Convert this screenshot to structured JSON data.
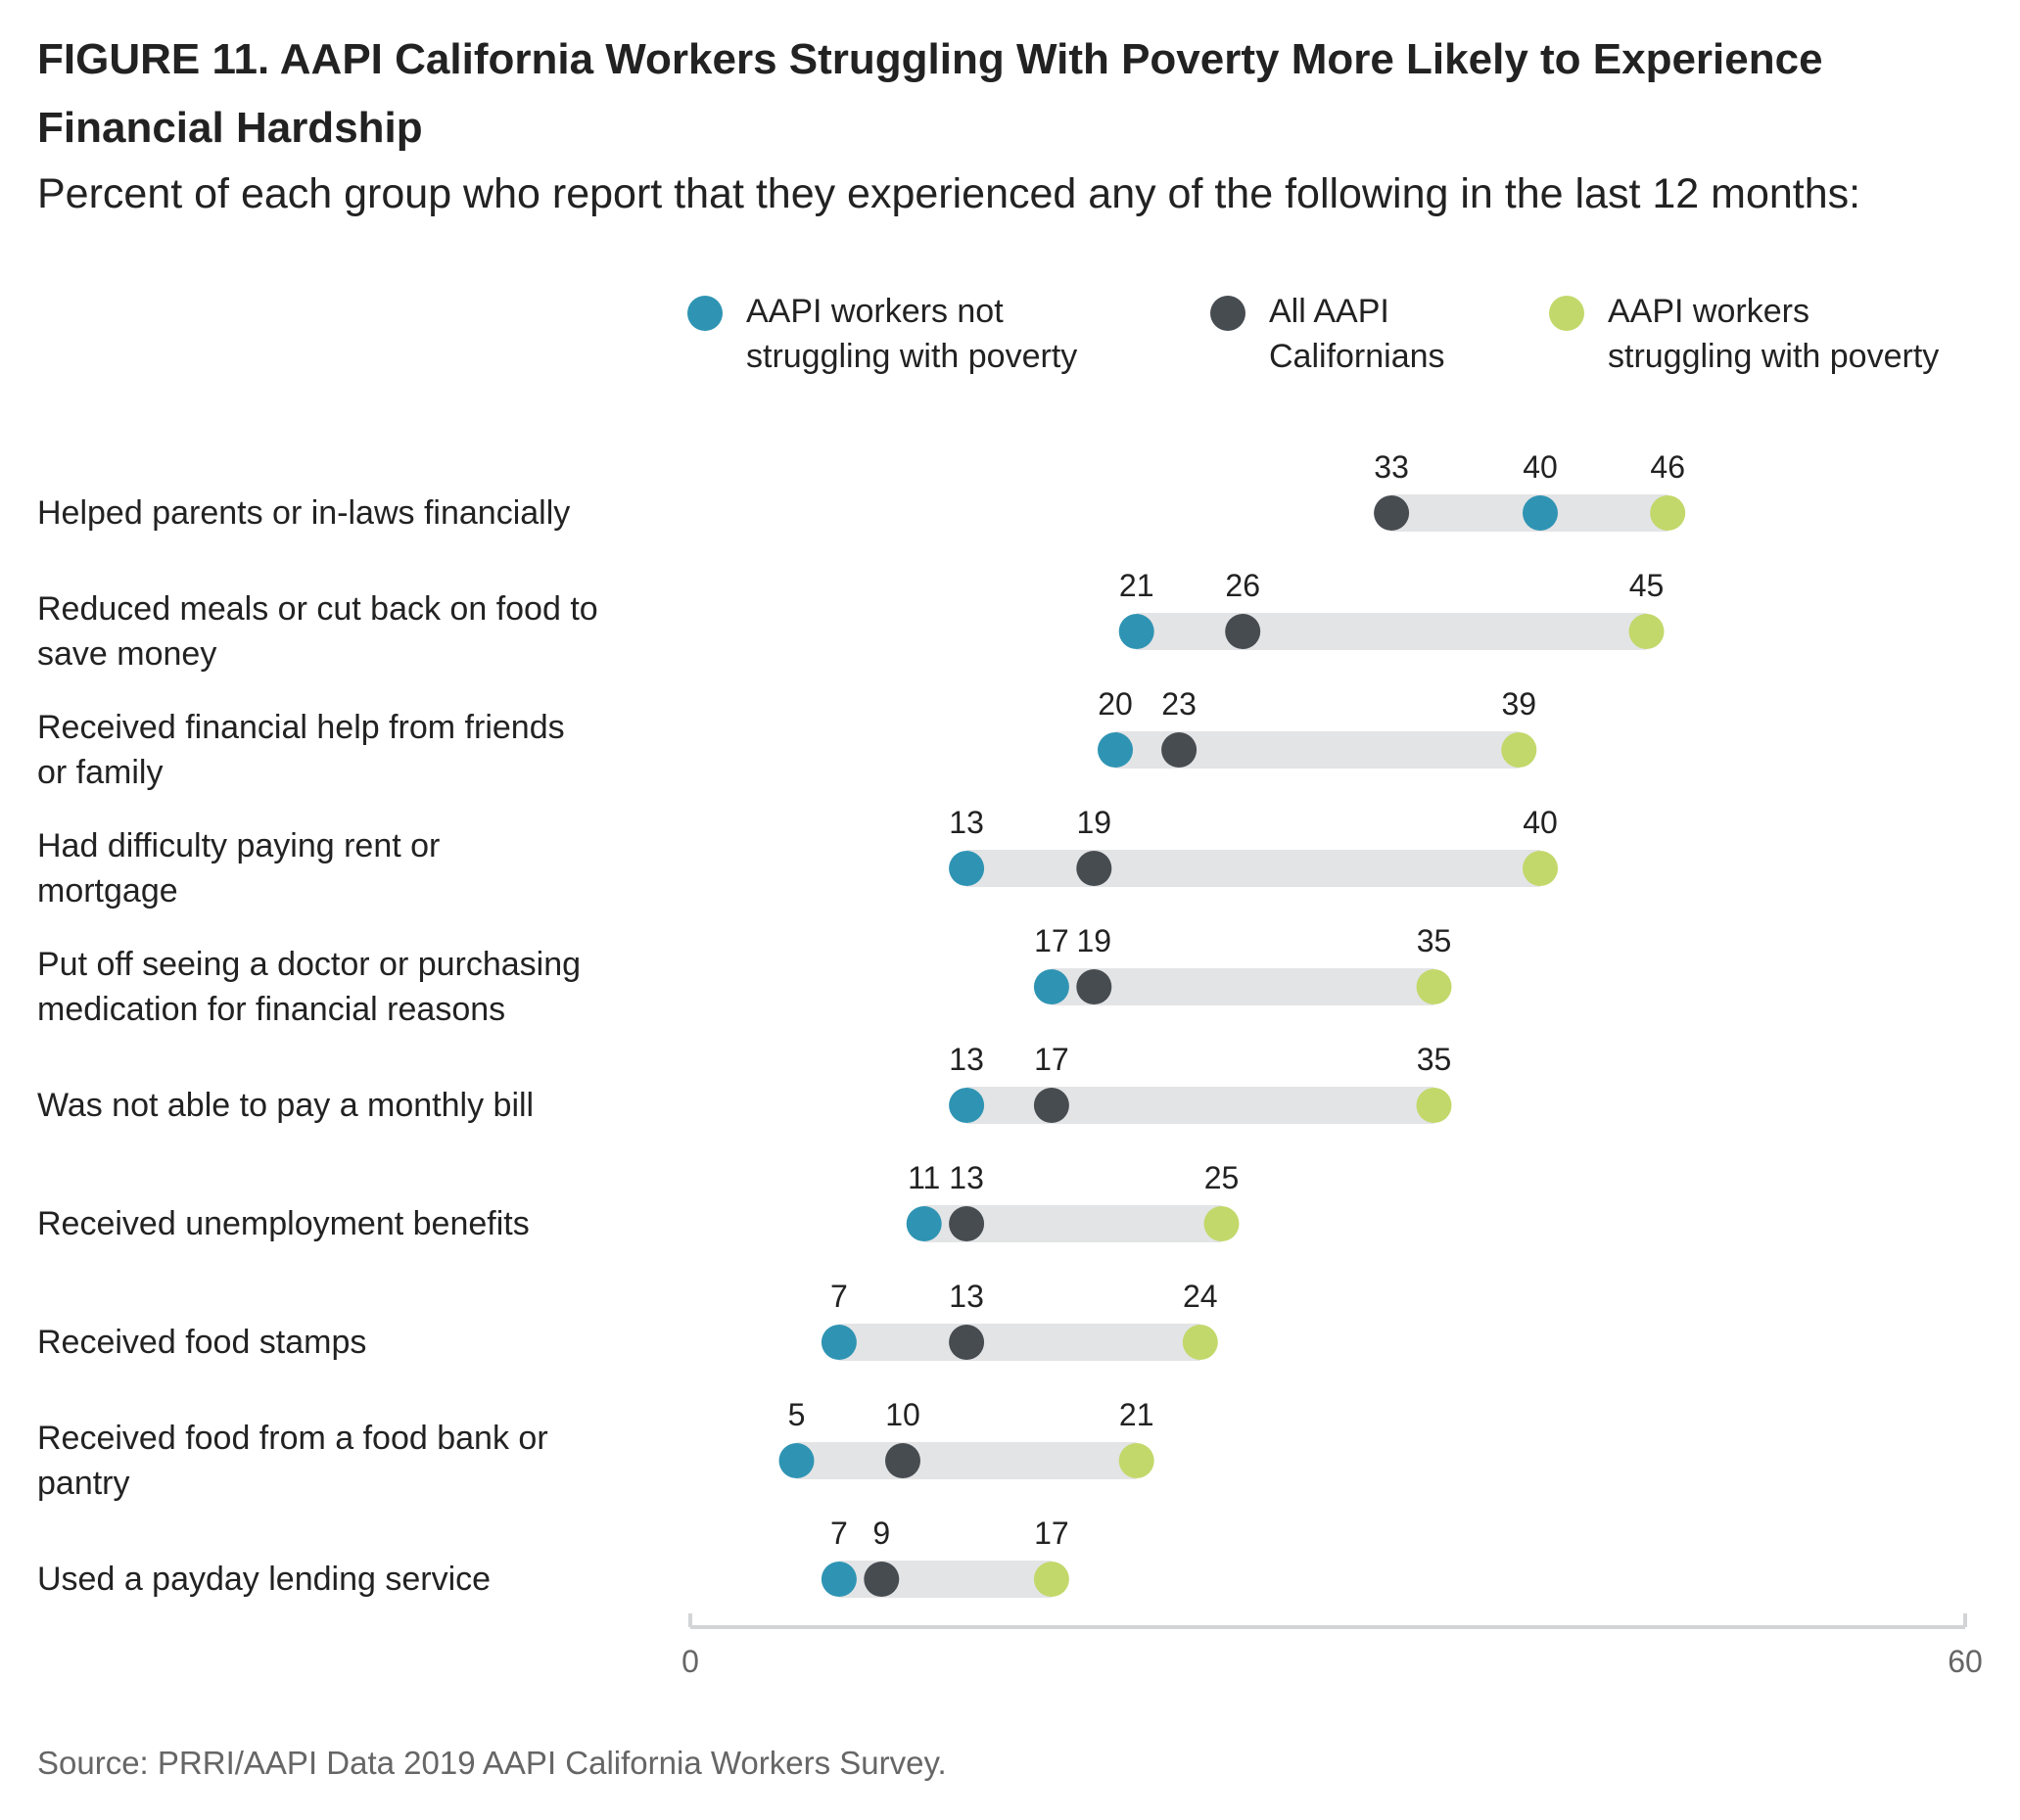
{
  "title": "FIGURE 11. AAPI California Workers Struggling With Poverty More Likely to Experience Financial Hardship",
  "subtitle": "Percent of each group who report that they experienced any of the following in the last 12 months:",
  "source": "Source: PRRI/AAPI Data 2019 AAPI California Workers Survey.",
  "colors": {
    "not_struggling": "#2f94b3",
    "all": "#474c51",
    "struggling": "#c2d86a",
    "range_bar": "#e3e4e6",
    "axis": "#d3d4d6",
    "text": "#222222",
    "muted": "#666666"
  },
  "chart_data": {
    "type": "dot-range",
    "xlim": [
      0,
      60
    ],
    "x_ticks": [
      0,
      60
    ],
    "grid": false,
    "legend_position": "top",
    "series": [
      {
        "key": "not_struggling",
        "name": "AAPI workers not struggling with poverty",
        "legend_lines": [
          "AAPI workers not",
          "struggling with poverty"
        ]
      },
      {
        "key": "all",
        "name": "All AAPI Californians",
        "legend_lines": [
          "All AAPI",
          "Californians"
        ]
      },
      {
        "key": "struggling",
        "name": "AAPI workers struggling with poverty",
        "legend_lines": [
          "AAPI workers",
          "struggling with poverty"
        ]
      }
    ],
    "categories": [
      {
        "label": [
          "Helped parents or in-laws financially"
        ],
        "not_struggling": 40,
        "all": 33,
        "struggling": 46
      },
      {
        "label": [
          "Reduced meals or cut back on food to",
          "save money"
        ],
        "not_struggling": 21,
        "all": 26,
        "struggling": 45
      },
      {
        "label": [
          "Received financial help from friends",
          "or family"
        ],
        "not_struggling": 20,
        "all": 23,
        "struggling": 39
      },
      {
        "label": [
          "Had difficulty paying rent or",
          "mortgage"
        ],
        "not_struggling": 13,
        "all": 19,
        "struggling": 40
      },
      {
        "label": [
          "Put off seeing a doctor or purchasing",
          "medication for financial reasons"
        ],
        "not_struggling": 17,
        "all": 19,
        "struggling": 35
      },
      {
        "label": [
          "Was not able to pay a monthly bill"
        ],
        "not_struggling": 13,
        "all": 17,
        "struggling": 35
      },
      {
        "label": [
          "Received unemployment benefits"
        ],
        "not_struggling": 11,
        "all": 13,
        "struggling": 25
      },
      {
        "label": [
          "Received food stamps"
        ],
        "not_struggling": 7,
        "all": 13,
        "struggling": 24
      },
      {
        "label": [
          "Received food from a food bank or",
          "pantry"
        ],
        "not_struggling": 5,
        "all": 10,
        "struggling": 21
      },
      {
        "label": [
          "Used a payday lending service"
        ],
        "not_struggling": 7,
        "all": 9,
        "struggling": 17
      }
    ]
  }
}
